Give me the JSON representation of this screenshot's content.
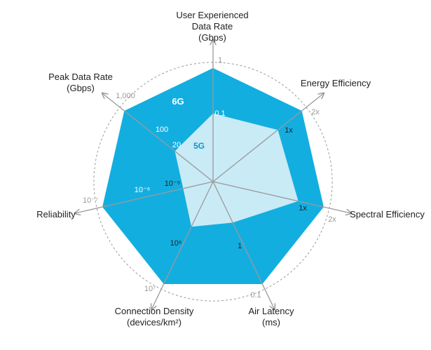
{
  "chart_data": {
    "type": "radar",
    "axes": [
      {
        "name_lines": [
          "User Experienced",
          "Data Rate",
          "(Gbps)"
        ],
        "ticks_5g": "0.1",
        "tick_6g": "1"
      },
      {
        "name_lines": [
          "Energy Efficiency"
        ],
        "ticks_5g": "1x",
        "tick_6g": "2x"
      },
      {
        "name_lines": [
          "Spectral Efficiency"
        ],
        "ticks_5g": "1x",
        "tick_6g": "2x"
      },
      {
        "name_lines": [
          "Air Latency",
          "(ms)"
        ],
        "ticks_5g": "1",
        "tick_6g": "0.1"
      },
      {
        "name_lines": [
          "Connection Density",
          "(devices/km²)"
        ],
        "ticks_5g": "10⁶",
        "tick_6g": "10⁷"
      },
      {
        "name_lines": [
          "Reliability"
        ],
        "ticks_5g": "10⁻⁵",
        "ticks_5g_2": "10⁻⁶",
        "tick_6g": "10⁻⁷"
      },
      {
        "name_lines": [
          "Peak Data Rate",
          "(Gbps)"
        ],
        "ticks_5g": "20",
        "ticks_5g_2": "100",
        "tick_6g": "1,000"
      }
    ],
    "series": [
      {
        "name": "6G",
        "values": [
          1,
          1,
          1,
          1,
          1,
          1,
          1
        ]
      },
      {
        "name": "5G",
        "values": [
          0.6,
          0.73,
          0.77,
          0.4,
          0.44,
          0.27,
          0.43
        ]
      }
    ],
    "rlim": [
      0,
      1
    ],
    "grid_rings": [
      0.3,
      0.58,
      1.05
    ],
    "colors": {
      "series_6g": "#13aee0",
      "series_5g": "#c9ebf6",
      "axis": "#9a9a9a",
      "ring": "#9a9a9a",
      "label_6g": "#ffffff",
      "label_5g": "#1493c9",
      "tick_inner": "#ffffff",
      "tick_inner_5g": "#222222",
      "tick_outer": "#9a9a9a"
    }
  }
}
